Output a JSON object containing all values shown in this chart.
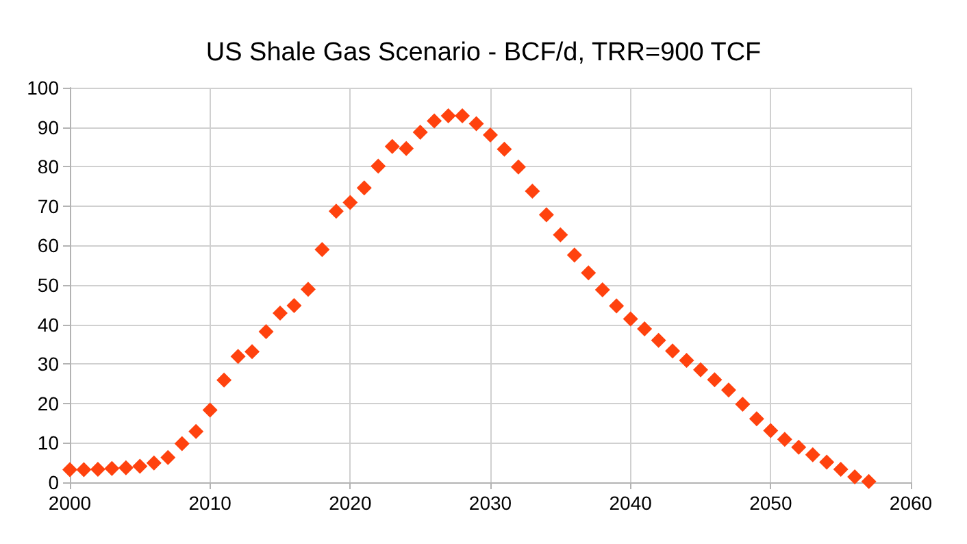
{
  "chart_data": {
    "type": "scatter",
    "title": "US Shale Gas Scenario - BCF/d, TRR=900 TCF",
    "x": [
      2000,
      2001,
      2002,
      2003,
      2004,
      2005,
      2006,
      2007,
      2008,
      2009,
      2010,
      2011,
      2012,
      2013,
      2014,
      2015,
      2016,
      2017,
      2018,
      2019,
      2020,
      2021,
      2022,
      2023,
      2024,
      2025,
      2026,
      2027,
      2028,
      2029,
      2030,
      2031,
      2032,
      2033,
      2034,
      2035,
      2036,
      2037,
      2038,
      2039,
      2040,
      2041,
      2042,
      2043,
      2044,
      2045,
      2046,
      2047,
      2048,
      2049,
      2050,
      2051,
      2052,
      2053,
      2054,
      2055,
      2056,
      2057
    ],
    "values": [
      3.2,
      3.2,
      3.3,
      3.5,
      3.7,
      4.1,
      4.9,
      6.3,
      9.8,
      12.9,
      18.3,
      25.9,
      31.9,
      33.1,
      38.2,
      42.9,
      44.8,
      48.9,
      59.0,
      68.7,
      70.9,
      74.6,
      80.1,
      85.1,
      84.6,
      88.7,
      91.6,
      92.9,
      92.9,
      90.9,
      88.0,
      84.4,
      79.9,
      73.8,
      67.8,
      62.7,
      57.6,
      53.1,
      48.8,
      44.7,
      41.4,
      38.9,
      36.0,
      33.3,
      30.9,
      28.5,
      26.0,
      23.4,
      19.8,
      16.1,
      13.1,
      10.9,
      8.9,
      7.0,
      5.1,
      3.3,
      1.4,
      0.2
    ],
    "color": "#ff420e",
    "marker": "diamond",
    "xlim": [
      2000,
      2060
    ],
    "xticks": [
      2000,
      2010,
      2020,
      2030,
      2040,
      2050,
      2060
    ],
    "ylim": [
      0,
      100
    ],
    "yticks": [
      0,
      10,
      20,
      30,
      40,
      50,
      60,
      70,
      80,
      90,
      100
    ],
    "grid": true
  }
}
